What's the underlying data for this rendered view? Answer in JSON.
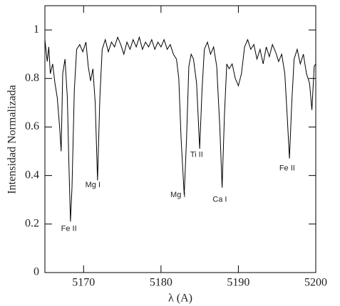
{
  "chart_data": {
    "type": "line",
    "xlabel": "λ (A)",
    "ylabel": "Intensidad Normalizada",
    "color": "#000000",
    "xlim": [
      5165,
      5200
    ],
    "xticks": [
      5170,
      5180,
      5190,
      5200
    ],
    "ylim": [
      0,
      1.1
    ],
    "yticks": [
      0,
      0.2,
      0.4,
      0.6,
      0.8,
      1
    ],
    "x": [
      5165,
      5165.3,
      5165.5,
      5165.7,
      5166,
      5166.3,
      5166.6,
      5166.9,
      5167.1,
      5167.3,
      5167.6,
      5167.9,
      5168.1,
      5168.3,
      5168.5,
      5168.8,
      5169.1,
      5169.5,
      5169.9,
      5170.3,
      5170.6,
      5170.9,
      5171.2,
      5171.5,
      5171.8,
      5172.1,
      5172.4,
      5172.8,
      5173.2,
      5173.6,
      5174,
      5174.4,
      5174.8,
      5175.2,
      5175.6,
      5176,
      5176.4,
      5176.8,
      5177.2,
      5177.6,
      5178,
      5178.4,
      5178.8,
      5179.2,
      5179.6,
      5180,
      5180.4,
      5180.8,
      5181.2,
      5181.6,
      5182,
      5182.3,
      5182.6,
      5183,
      5183.3,
      5183.6,
      5183.9,
      5184.2,
      5184.6,
      5185,
      5185.3,
      5185.6,
      5186,
      5186.4,
      5186.8,
      5187.2,
      5187.6,
      5187.9,
      5188.2,
      5188.5,
      5188.8,
      5189.2,
      5189.6,
      5190,
      5190.4,
      5190.8,
      5191.2,
      5191.6,
      5192,
      5192.4,
      5192.8,
      5193.2,
      5193.6,
      5194,
      5194.4,
      5194.8,
      5195.2,
      5195.6,
      5196,
      5196.3,
      5196.6,
      5196.9,
      5197.2,
      5197.6,
      5198,
      5198.4,
      5198.8,
      5199.2,
      5199.5,
      5199.8,
      5200
    ],
    "values": [
      0.96,
      0.87,
      0.93,
      0.82,
      0.86,
      0.78,
      0.72,
      0.6,
      0.5,
      0.82,
      0.88,
      0.72,
      0.45,
      0.21,
      0.35,
      0.75,
      0.92,
      0.94,
      0.91,
      0.95,
      0.85,
      0.79,
      0.84,
      0.7,
      0.38,
      0.72,
      0.92,
      0.96,
      0.91,
      0.95,
      0.93,
      0.97,
      0.94,
      0.9,
      0.95,
      0.92,
      0.96,
      0.93,
      0.97,
      0.92,
      0.95,
      0.93,
      0.96,
      0.92,
      0.95,
      0.93,
      0.96,
      0.92,
      0.94,
      0.9,
      0.88,
      0.8,
      0.55,
      0.32,
      0.55,
      0.85,
      0.9,
      0.88,
      0.78,
      0.51,
      0.75,
      0.92,
      0.95,
      0.9,
      0.93,
      0.85,
      0.6,
      0.35,
      0.65,
      0.86,
      0.84,
      0.86,
      0.8,
      0.77,
      0.82,
      0.93,
      0.96,
      0.92,
      0.94,
      0.88,
      0.92,
      0.86,
      0.93,
      0.89,
      0.94,
      0.91,
      0.87,
      0.9,
      0.82,
      0.65,
      0.47,
      0.7,
      0.88,
      0.92,
      0.86,
      0.9,
      0.82,
      0.78,
      0.67,
      0.85,
      0.86
    ],
    "annotations": [
      {
        "text": "Fe II",
        "x": 5168.1,
        "y": 0.18
      },
      {
        "text": "Mg I",
        "x": 5171.2,
        "y": 0.36
      },
      {
        "text": "Mg I",
        "x": 5182.2,
        "y": 0.32
      },
      {
        "text": "Ti II",
        "x": 5184.6,
        "y": 0.485
      },
      {
        "text": "Ca I",
        "x": 5187.6,
        "y": 0.3
      },
      {
        "text": "Fe II",
        "x": 5196.3,
        "y": 0.43
      }
    ]
  }
}
